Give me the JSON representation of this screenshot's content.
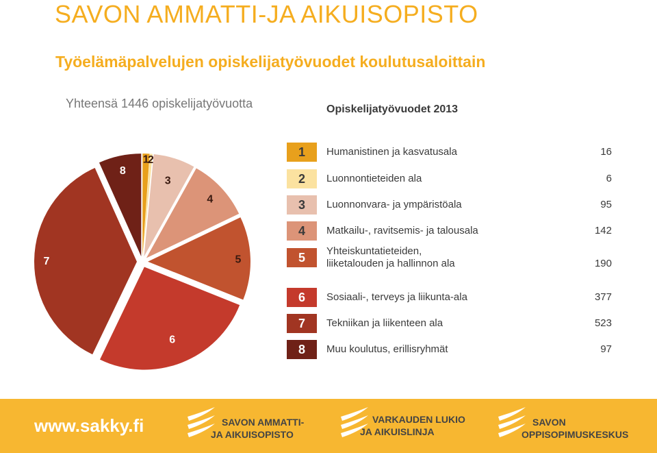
{
  "header": {
    "org_name": "SAVON AMMATTI-JA AIKUISOPISTO",
    "chart_title": "Työelämäpalvelujen opiskelijatyövuodet koulutusaloittain",
    "total_text": "Yhteensä 1446 opiskelijatyövuotta"
  },
  "legend": {
    "title": "Opiskelijatyövuodet 2013",
    "items": [
      {
        "num": "1",
        "label_lines": [
          "Humanistinen ja kasvatusala"
        ],
        "value": "16",
        "color": "#e8a01c",
        "text_color": "#3a3a3a"
      },
      {
        "num": "2",
        "label_lines": [
          "Luonnontieteiden ala"
        ],
        "value": "6",
        "color": "#fbe2a0",
        "text_color": "#3a3a3a"
      },
      {
        "num": "3",
        "label_lines": [
          "Luonnonvara- ja ympäristöala"
        ],
        "value": "95",
        "color": "#e8c0ae",
        "text_color": "#3a3a3a"
      },
      {
        "num": "4",
        "label_lines": [
          "Matkailu-, ravitsemis- ja talousala"
        ],
        "value": "142",
        "color": "#dc9478",
        "text_color": "#3a3a3a"
      },
      {
        "num": "5",
        "label_lines": [
          "Yhteiskuntatieteiden,",
          "liiketalouden ja hallinnon ala"
        ],
        "value": "190",
        "color": "#c1532f",
        "text_color": "#ffffff"
      },
      {
        "num": "6",
        "label_lines": [
          "Sosiaali-, terveys ja liikunta-ala"
        ],
        "value": "377",
        "color": "#c43a2c",
        "text_color": "#ffffff"
      },
      {
        "num": "7",
        "label_lines": [
          "Tekniikan ja liikenteen ala"
        ],
        "value": "523",
        "color": "#a13522",
        "text_color": "#ffffff"
      },
      {
        "num": "8",
        "label_lines": [
          "Muu koulutus, erillisryhmät"
        ],
        "value": "97",
        "color": "#6f2117",
        "text_color": "#ffffff"
      }
    ]
  },
  "chart_data": {
    "type": "pie",
    "title": "Työelämäpalvelujen opiskelijatyövuodet koulutusaloittain",
    "subtitle": "Opiskelijatyövuodet 2013",
    "total": 1446,
    "slices": [
      {
        "label": "1",
        "category": "Humanistinen ja kasvatusala",
        "value": 16,
        "color": "#e8a01c"
      },
      {
        "label": "2",
        "category": "Luonnontieteiden ala",
        "value": 6,
        "color": "#fbe2a0"
      },
      {
        "label": "3",
        "category": "Luonnonvara- ja ympäristöala",
        "value": 95,
        "color": "#e8c0ae"
      },
      {
        "label": "4",
        "category": "Matkailu-, ravitsemis- ja talousala",
        "value": 142,
        "color": "#dc9478"
      },
      {
        "label": "5",
        "category": "Yhteiskuntatieteiden, liiketalouden ja hallinnon ala",
        "value": 190,
        "color": "#c1532f"
      },
      {
        "label": "6",
        "category": "Sosiaali-, terveys ja liikunta-ala",
        "value": 377,
        "color": "#c43a2c"
      },
      {
        "label": "7",
        "category": "Tekniikan ja liikenteen ala",
        "value": 523,
        "color": "#a13522"
      },
      {
        "label": "8",
        "category": "Muu koulutus, erillisryhmät",
        "value": 97,
        "color": "#6f2117"
      }
    ],
    "exploded": true,
    "legend_position": "right"
  },
  "footer": {
    "url": "www.sakky.fi",
    "logos": [
      {
        "name": "savon-ammatti-ja-aikuisopisto-logo",
        "lines": [
          "SAVON AMMATTI-",
          "JA AIKUISOPISTO"
        ]
      },
      {
        "name": "varkauden-lukio-ja-aikuislinja-logo",
        "lines": [
          "VARKAUDEN LUKIO",
          "JA AIKUISLINJA"
        ]
      },
      {
        "name": "savon-oppisopimuskeskus-logo",
        "lines": [
          "SAVON",
          "OPPISOPIMUSKESKUS"
        ]
      }
    ],
    "background_color": "#f7b731"
  }
}
